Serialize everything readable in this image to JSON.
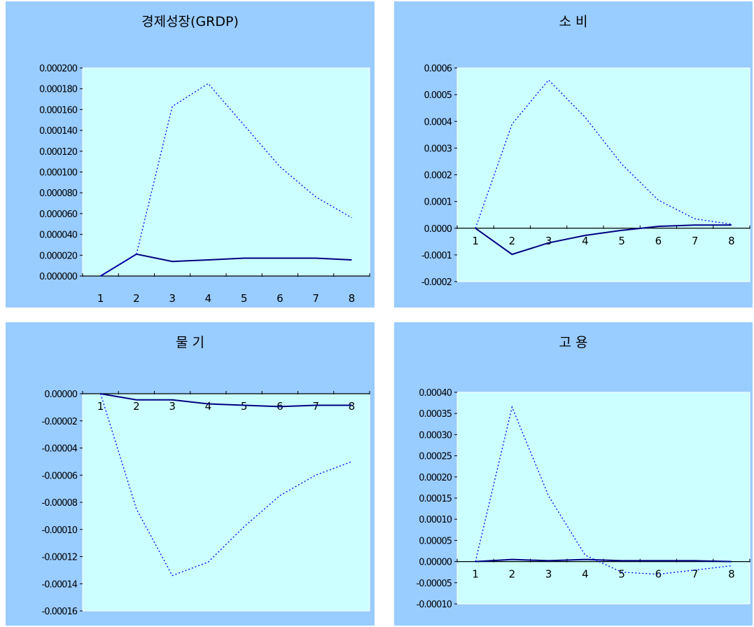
{
  "chart_data": [
    {
      "type": "line",
      "title": "경제성장(GRDP)",
      "categories": [
        "1",
        "2",
        "3",
        "4",
        "5",
        "6",
        "7",
        "8"
      ],
      "yticks": [
        "0.000000",
        "0.000020",
        "0.000040",
        "0.000060",
        "0.000080",
        "0.000100",
        "0.000120",
        "0.000140",
        "0.000160",
        "0.000180",
        "0.000200"
      ],
      "ylim": [
        0,
        0.0002
      ],
      "series": [
        {
          "style": "solid",
          "values": [
            0,
            2.1e-05,
            1.4e-05,
            1.55e-05,
            1.72e-05,
            1.72e-05,
            1.72e-05,
            1.55e-05
          ]
        },
        {
          "style": "dotted",
          "values": [
            0,
            2.1e-05,
            0.000163,
            0.000185,
            0.000145,
            0.000105,
            7.6e-05,
            5.6e-05
          ]
        }
      ],
      "colors": {
        "solid": "#000080",
        "dotted": "#0000ff",
        "plot_bg": "#ccffff",
        "panel_bg": "#99ccff"
      }
    },
    {
      "type": "line",
      "title": "소 비",
      "categories": [
        "1",
        "2",
        "3",
        "4",
        "5",
        "6",
        "7",
        "8"
      ],
      "yticks": [
        "-0.0002",
        "-0.0001",
        "0.0000",
        "0.0001",
        "0.0002",
        "0.0003",
        "0.0004",
        "0.0005",
        "0.0006"
      ],
      "ylim": [
        -0.0002,
        0.0006
      ],
      "series": [
        {
          "style": "solid",
          "values": [
            0,
            -9.8e-05,
            -5.5e-05,
            -2.7e-05,
            -8e-06,
            7e-06,
            1.2e-05,
            1.2e-05
          ]
        },
        {
          "style": "dotted",
          "values": [
            0,
            0.00039,
            0.000555,
            0.000415,
            0.00024,
            0.000105,
            3.5e-05,
            1.5e-05
          ]
        }
      ],
      "colors": {
        "solid": "#000080",
        "dotted": "#0000ff",
        "plot_bg": "#ccffff",
        "panel_bg": "#99ccff"
      }
    },
    {
      "type": "line",
      "title": "물 기",
      "categories": [
        "1",
        "2",
        "3",
        "4",
        "5",
        "6",
        "7",
        "8"
      ],
      "yticks": [
        "-0.00016",
        "-0.00014",
        "-0.00012",
        "-0.00010",
        "-0.00008",
        "-0.00006",
        "-0.00004",
        "-0.00002",
        "0.00000"
      ],
      "ylim": [
        -0.00016,
        0
      ],
      "series": [
        {
          "style": "solid",
          "values": [
            0,
            -4.5e-06,
            -4.5e-06,
            -7.5e-06,
            -8.5e-06,
            -9.5e-06,
            -8.5e-06,
            -8.5e-06
          ]
        },
        {
          "style": "dotted",
          "values": [
            0,
            -8.5e-05,
            -0.000134,
            -0.000124,
            -9.8e-05,
            -7.5e-05,
            -6e-05,
            -5e-05
          ]
        }
      ],
      "colors": {
        "solid": "#000080",
        "dotted": "#0000ff",
        "plot_bg": "#ccffff",
        "panel_bg": "#99ccff"
      }
    },
    {
      "type": "line",
      "title": "고 용",
      "categories": [
        "1",
        "2",
        "3",
        "4",
        "5",
        "6",
        "7",
        "8"
      ],
      "yticks": [
        "-0.00010",
        "-0.00005",
        "0.00000",
        "0.00005",
        "0.00010",
        "0.00015",
        "0.00020",
        "0.00025",
        "0.00030",
        "0.00035",
        "0.00040"
      ],
      "ylim": [
        -0.0001,
        0.0004
      ],
      "series": [
        {
          "style": "solid",
          "values": [
            0,
            5e-06,
            2e-06,
            5e-06,
            2e-06,
            2e-06,
            2e-06,
            0
          ]
        },
        {
          "style": "dotted",
          "values": [
            0,
            0.000365,
            0.000155,
            1.5e-05,
            -2.5e-05,
            -3e-05,
            -2e-05,
            -1e-05
          ]
        }
      ],
      "colors": {
        "solid": "#000080",
        "dotted": "#0000ff",
        "plot_bg": "#ccffff",
        "panel_bg": "#99ccff"
      }
    }
  ]
}
